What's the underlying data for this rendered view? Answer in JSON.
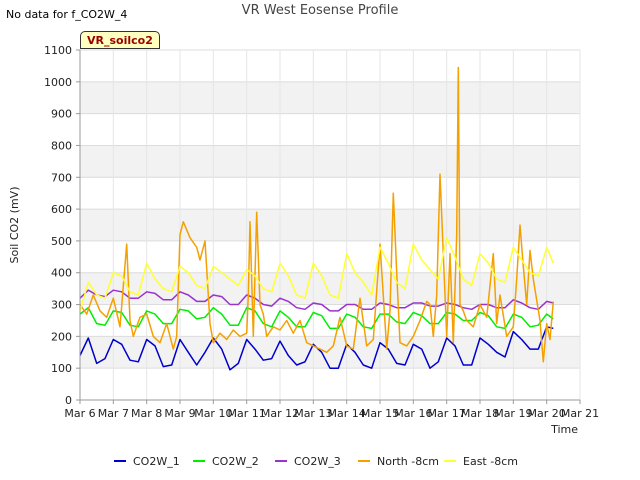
{
  "header": {
    "no_data_note": "No data for f_CO2W_4",
    "site_badge": "VR_soilco2"
  },
  "chart_data": {
    "type": "line",
    "title": "VR West Eosense Profile",
    "xlabel": "Time",
    "ylabel": "Soil CO2 (mV)",
    "x_ticks": [
      "Mar 6",
      "Mar 7",
      "Mar 8",
      "Mar 9",
      "Mar 10",
      "Mar 11",
      "Mar 12",
      "Mar 13",
      "Mar 14",
      "Mar 15",
      "Mar 16",
      "Mar 17",
      "Mar 18",
      "Mar 19",
      "Mar 20",
      "Mar 21"
    ],
    "xlim": [
      6,
      21
    ],
    "ylim": [
      0,
      1100
    ],
    "y_ticks": [
      0,
      100,
      200,
      300,
      400,
      500,
      600,
      700,
      800,
      900,
      1000,
      1100
    ],
    "grid": true,
    "legend_position": "bottom",
    "series": [
      {
        "name": "CO2W_1",
        "color": "#0000cc",
        "x": [
          6.0,
          6.25,
          6.5,
          6.75,
          7.0,
          7.25,
          7.5,
          7.75,
          8.0,
          8.25,
          8.5,
          8.75,
          9.0,
          9.25,
          9.5,
          9.75,
          10.0,
          10.25,
          10.5,
          10.75,
          11.0,
          11.25,
          11.5,
          11.75,
          12.0,
          12.25,
          12.5,
          12.75,
          13.0,
          13.25,
          13.5,
          13.75,
          14.0,
          14.25,
          14.5,
          14.75,
          15.0,
          15.25,
          15.5,
          15.75,
          16.0,
          16.25,
          16.5,
          16.75,
          17.0,
          17.25,
          17.5,
          17.75,
          18.0,
          18.25,
          18.5,
          18.75,
          19.0,
          19.25,
          19.5,
          19.75,
          20.0,
          20.2
        ],
        "y": [
          140,
          195,
          115,
          130,
          190,
          175,
          125,
          120,
          190,
          170,
          105,
          110,
          190,
          150,
          110,
          150,
          195,
          160,
          95,
          115,
          190,
          160,
          125,
          130,
          185,
          140,
          110,
          120,
          175,
          150,
          100,
          100,
          175,
          150,
          110,
          100,
          180,
          160,
          115,
          110,
          175,
          160,
          100,
          120,
          195,
          170,
          110,
          110,
          195,
          175,
          150,
          135,
          215,
          190,
          160,
          160,
          230,
          225
        ]
      },
      {
        "name": "CO2W_2",
        "color": "#00ee00",
        "x": [
          6.0,
          6.25,
          6.5,
          6.75,
          7.0,
          7.25,
          7.5,
          7.75,
          8.0,
          8.25,
          8.5,
          8.75,
          9.0,
          9.25,
          9.5,
          9.75,
          10.0,
          10.25,
          10.5,
          10.75,
          11.0,
          11.25,
          11.5,
          11.75,
          12.0,
          12.25,
          12.5,
          12.75,
          13.0,
          13.25,
          13.5,
          13.75,
          14.0,
          14.25,
          14.5,
          14.75,
          15.0,
          15.25,
          15.5,
          15.75,
          16.0,
          16.25,
          16.5,
          16.75,
          17.0,
          17.25,
          17.5,
          17.75,
          18.0,
          18.25,
          18.5,
          18.75,
          19.0,
          19.25,
          19.5,
          19.75,
          20.0,
          20.2
        ],
        "y": [
          270,
          290,
          240,
          235,
          280,
          275,
          235,
          230,
          280,
          270,
          240,
          240,
          285,
          280,
          255,
          260,
          290,
          270,
          235,
          235,
          290,
          280,
          240,
          230,
          280,
          260,
          230,
          230,
          275,
          265,
          225,
          225,
          270,
          260,
          230,
          225,
          270,
          270,
          245,
          240,
          275,
          265,
          240,
          240,
          275,
          270,
          250,
          250,
          275,
          265,
          230,
          225,
          270,
          260,
          230,
          235,
          270,
          255
        ]
      },
      {
        "name": "CO2W_3",
        "color": "#9933cc",
        "x": [
          6.0,
          6.25,
          6.5,
          6.75,
          7.0,
          7.25,
          7.5,
          7.75,
          8.0,
          8.25,
          8.5,
          8.75,
          9.0,
          9.25,
          9.5,
          9.75,
          10.0,
          10.25,
          10.5,
          10.75,
          11.0,
          11.25,
          11.5,
          11.75,
          12.0,
          12.25,
          12.5,
          12.75,
          13.0,
          13.25,
          13.5,
          13.75,
          14.0,
          14.25,
          14.5,
          14.75,
          15.0,
          15.25,
          15.5,
          15.75,
          16.0,
          16.25,
          16.5,
          16.75,
          17.0,
          17.25,
          17.5,
          17.75,
          18.0,
          18.25,
          18.5,
          18.75,
          19.0,
          19.25,
          19.5,
          19.75,
          20.0,
          20.2
        ],
        "y": [
          320,
          345,
          330,
          325,
          345,
          340,
          320,
          320,
          340,
          335,
          315,
          315,
          340,
          330,
          310,
          310,
          330,
          325,
          300,
          300,
          330,
          320,
          300,
          295,
          320,
          310,
          290,
          285,
          305,
          300,
          280,
          280,
          300,
          300,
          285,
          285,
          305,
          300,
          290,
          290,
          305,
          305,
          295,
          295,
          305,
          300,
          290,
          285,
          300,
          300,
          290,
          290,
          315,
          305,
          290,
          285,
          310,
          305
        ]
      },
      {
        "name": "North -8cm",
        "color": "#f4a000",
        "x": [
          6.0,
          6.2,
          6.4,
          6.6,
          6.8,
          7.0,
          7.2,
          7.4,
          7.5,
          7.6,
          7.8,
          8.0,
          8.2,
          8.4,
          8.6,
          8.8,
          8.9,
          9.0,
          9.1,
          9.3,
          9.5,
          9.6,
          9.75,
          9.9,
          10.0,
          10.2,
          10.4,
          10.6,
          10.8,
          11.0,
          11.05,
          11.1,
          11.2,
          11.3,
          11.4,
          11.5,
          11.6,
          11.8,
          12.0,
          12.2,
          12.4,
          12.6,
          12.8,
          13.0,
          13.2,
          13.4,
          13.6,
          13.8,
          14.0,
          14.2,
          14.4,
          14.6,
          14.8,
          15.0,
          15.2,
          15.3,
          15.4,
          15.5,
          15.6,
          15.8,
          16.0,
          16.2,
          16.4,
          16.5,
          16.6,
          16.7,
          16.8,
          17.0,
          17.1,
          17.2,
          17.3,
          17.35,
          17.4,
          17.5,
          17.6,
          17.8,
          18.0,
          18.2,
          18.4,
          18.5,
          18.6,
          18.8,
          19.0,
          19.1,
          19.2,
          19.3,
          19.4,
          19.5,
          19.6,
          19.8,
          19.9,
          20.0,
          20.1,
          20.2
        ],
        "y": [
          300,
          270,
          330,
          280,
          260,
          320,
          230,
          490,
          250,
          200,
          260,
          270,
          200,
          180,
          240,
          160,
          200,
          520,
          560,
          510,
          480,
          440,
          500,
          240,
          180,
          210,
          190,
          220,
          200,
          210,
          330,
          560,
          200,
          590,
          300,
          270,
          200,
          230,
          220,
          250,
          210,
          250,
          180,
          170,
          160,
          150,
          170,
          260,
          170,
          160,
          320,
          170,
          190,
          490,
          160,
          280,
          650,
          400,
          180,
          170,
          200,
          250,
          310,
          300,
          200,
          330,
          710,
          200,
          460,
          180,
          520,
          1045,
          300,
          280,
          250,
          230,
          300,
          260,
          460,
          240,
          330,
          200,
          230,
          380,
          550,
          420,
          300,
          470,
          380,
          250,
          120,
          240,
          190,
          310
        ]
      },
      {
        "name": "East -8cm",
        "color": "#ffff33",
        "x": [
          6.0,
          6.25,
          6.5,
          6.75,
          7.0,
          7.25,
          7.5,
          7.75,
          8.0,
          8.25,
          8.5,
          8.75,
          9.0,
          9.25,
          9.5,
          9.75,
          10.0,
          10.25,
          10.5,
          10.75,
          11.0,
          11.25,
          11.5,
          11.75,
          12.0,
          12.25,
          12.5,
          12.75,
          13.0,
          13.25,
          13.5,
          13.75,
          14.0,
          14.25,
          14.5,
          14.75,
          15.0,
          15.25,
          15.5,
          15.75,
          16.0,
          16.25,
          16.5,
          16.75,
          17.0,
          17.25,
          17.5,
          17.75,
          18.0,
          18.25,
          18.5,
          18.75,
          19.0,
          19.25,
          19.5,
          19.75,
          20.0,
          20.2
        ],
        "y": [
          280,
          370,
          330,
          320,
          400,
          390,
          340,
          330,
          430,
          380,
          350,
          340,
          420,
          400,
          360,
          350,
          420,
          400,
          380,
          360,
          410,
          390,
          350,
          340,
          430,
          390,
          330,
          320,
          430,
          390,
          330,
          320,
          460,
          400,
          370,
          330,
          480,
          430,
          370,
          350,
          490,
          440,
          410,
          380,
          510,
          450,
          380,
          360,
          460,
          430,
          380,
          370,
          480,
          440,
          400,
          390,
          480,
          430
        ]
      }
    ]
  }
}
